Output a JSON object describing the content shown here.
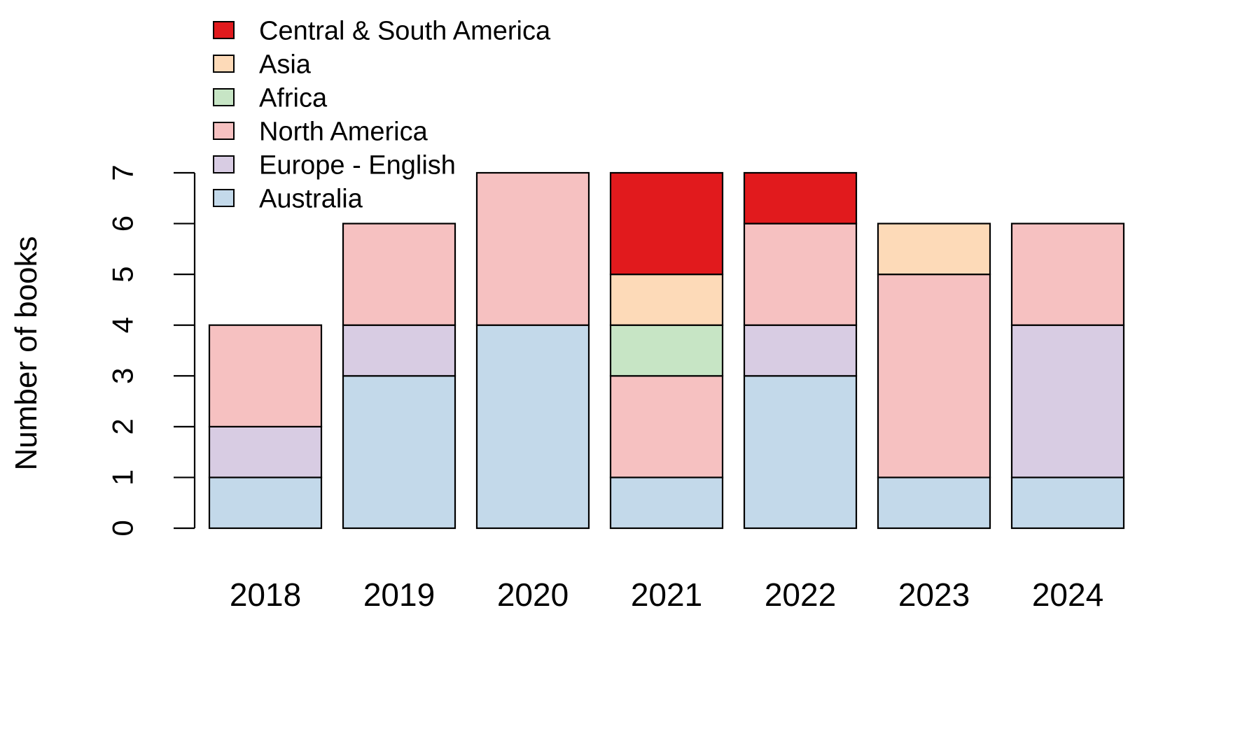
{
  "chart_data": {
    "type": "bar",
    "stacked": true,
    "title": "",
    "xlabel": "",
    "ylabel": "Number of books",
    "ylim": [
      0,
      7
    ],
    "yticks": [
      0,
      1,
      2,
      3,
      4,
      5,
      6,
      7
    ],
    "grid": false,
    "legend_position": "top-left",
    "categories": [
      "2018",
      "2019",
      "2020",
      "2021",
      "2022",
      "2023",
      "2024"
    ],
    "series": [
      {
        "name": "Australia",
        "color": "#C3D9EA",
        "values": [
          1,
          3,
          4,
          1,
          3,
          1,
          1
        ]
      },
      {
        "name": "Europe - English",
        "color": "#D8CCE3",
        "values": [
          1,
          1,
          0,
          0,
          1,
          0,
          3
        ]
      },
      {
        "name": "North America",
        "color": "#F6C1C1",
        "values": [
          2,
          2,
          3,
          2,
          2,
          4,
          2
        ]
      },
      {
        "name": "Africa",
        "color": "#C7E5C5",
        "values": [
          0,
          0,
          0,
          1,
          0,
          0,
          0
        ]
      },
      {
        "name": "Asia",
        "color": "#FDDAB8",
        "values": [
          0,
          0,
          0,
          1,
          0,
          1,
          0
        ]
      },
      {
        "name": "Central & South America",
        "color": "#E11A1D",
        "values": [
          0,
          0,
          0,
          2,
          1,
          0,
          0
        ]
      }
    ],
    "legend_order": [
      "Central & South America",
      "Asia",
      "Africa",
      "North America",
      "Europe - English",
      "Australia"
    ]
  }
}
